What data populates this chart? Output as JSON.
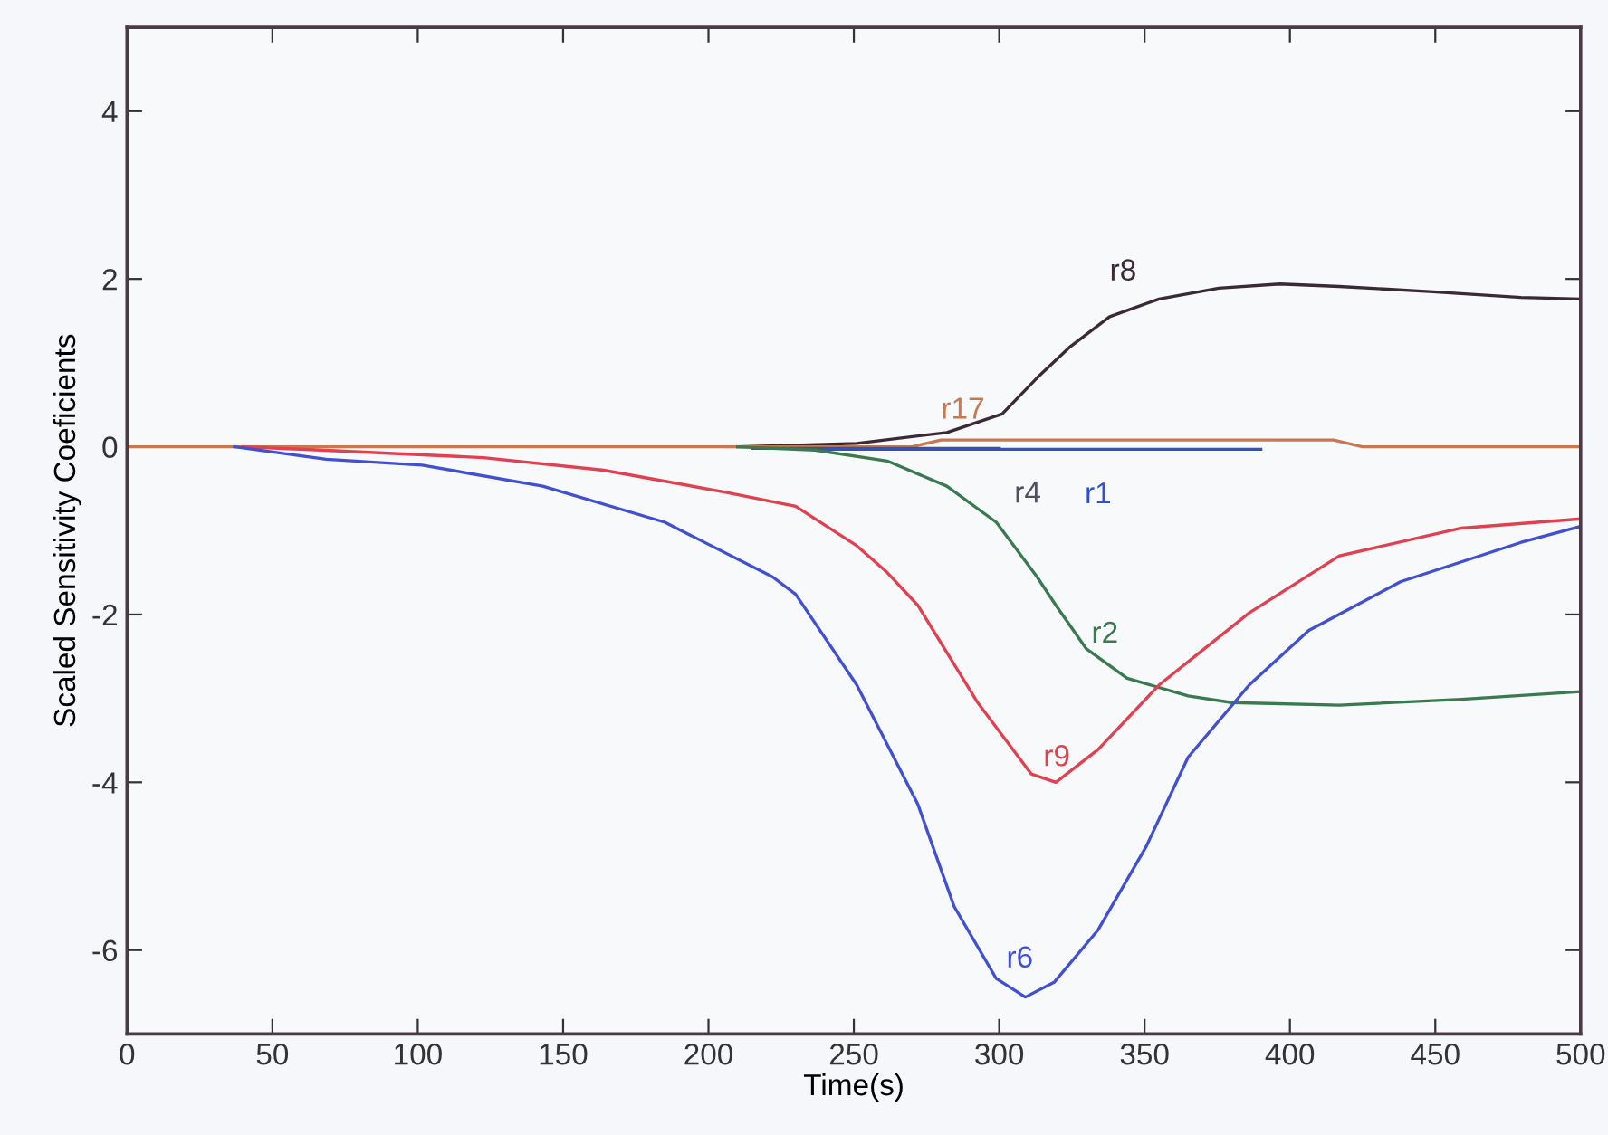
{
  "chart_data": {
    "type": "line",
    "xlabel": "Time(s)",
    "ylabel": "Scaled Sensitivity Coeficients",
    "xlim": [
      0,
      500
    ],
    "ylim": [
      -7,
      5
    ],
    "xticks": [
      0,
      50,
      100,
      150,
      200,
      250,
      300,
      350,
      400,
      450,
      500
    ],
    "yticks": [
      -6,
      -4,
      -2,
      0,
      2,
      4
    ],
    "grid": false,
    "legend": false,
    "marker": "none",
    "line_style": "solid",
    "series": [
      {
        "name": "r8",
        "color": "#3a2a35",
        "x": [
          210,
          251,
          282,
          301,
          313,
          324,
          338,
          355,
          375.5,
          396.5,
          417,
          448,
          479.5,
          500
        ],
        "values": [
          0,
          0.04,
          0.17,
          0.39,
          0.82,
          1.18,
          1.55,
          1.76,
          1.89,
          1.94,
          1.91,
          1.85,
          1.78,
          1.76
        ]
      },
      {
        "name": "r17",
        "color": "#c87850",
        "x": [
          0,
          270,
          280,
          415,
          425,
          500
        ],
        "values": [
          0,
          0,
          0.08,
          0.08,
          0,
          0
        ]
      },
      {
        "name": "r4",
        "color": "#505060",
        "x": [
          215,
          240,
          300
        ],
        "values": [
          -0.02,
          -0.02,
          -0.02
        ]
      },
      {
        "name": "r1",
        "color": "#3050d0",
        "x": [
          240,
          300,
          390
        ],
        "values": [
          -0.03,
          -0.03,
          -0.03
        ]
      },
      {
        "name": "r2",
        "color": "#3a7a50",
        "x": [
          210,
          236.6,
          261.5,
          282,
          299,
          313,
          319.5,
          330,
          344,
          365,
          380,
          417,
          459,
          500
        ],
        "values": [
          0,
          -0.04,
          -0.17,
          -0.47,
          -0.9,
          -1.55,
          -1.89,
          -2.41,
          -2.76,
          -2.97,
          -3.05,
          -3.08,
          -3.01,
          -2.92
        ]
      },
      {
        "name": "r9",
        "color": "#e04050",
        "x": [
          40,
          66.6,
          122.6,
          164,
          205.5,
          230,
          251,
          261.5,
          272,
          292.6,
          311,
          319.5,
          334,
          355,
          386,
          417,
          459,
          500
        ],
        "values": [
          0,
          -0.04,
          -0.13,
          -0.28,
          -0.54,
          -0.71,
          -1.18,
          -1.5,
          -1.89,
          -3.05,
          -3.9,
          -4.0,
          -3.61,
          -2.84,
          -1.98,
          -1.3,
          -0.97,
          -0.86
        ]
      },
      {
        "name": "r6",
        "color": "#4050d0",
        "x": [
          37,
          68.5,
          101.5,
          143,
          185,
          222,
          230,
          251,
          272,
          284.5,
          299,
          309,
          319,
          334,
          350.5,
          365,
          386,
          406.5,
          438,
          479.5,
          500
        ],
        "values": [
          0,
          -0.15,
          -0.22,
          -0.47,
          -0.9,
          -1.55,
          -1.76,
          -2.84,
          -4.26,
          -5.48,
          -6.34,
          -6.56,
          -6.38,
          -5.76,
          -4.77,
          -3.7,
          -2.84,
          -2.19,
          -1.61,
          -1.14,
          -0.95
        ]
      }
    ]
  }
}
